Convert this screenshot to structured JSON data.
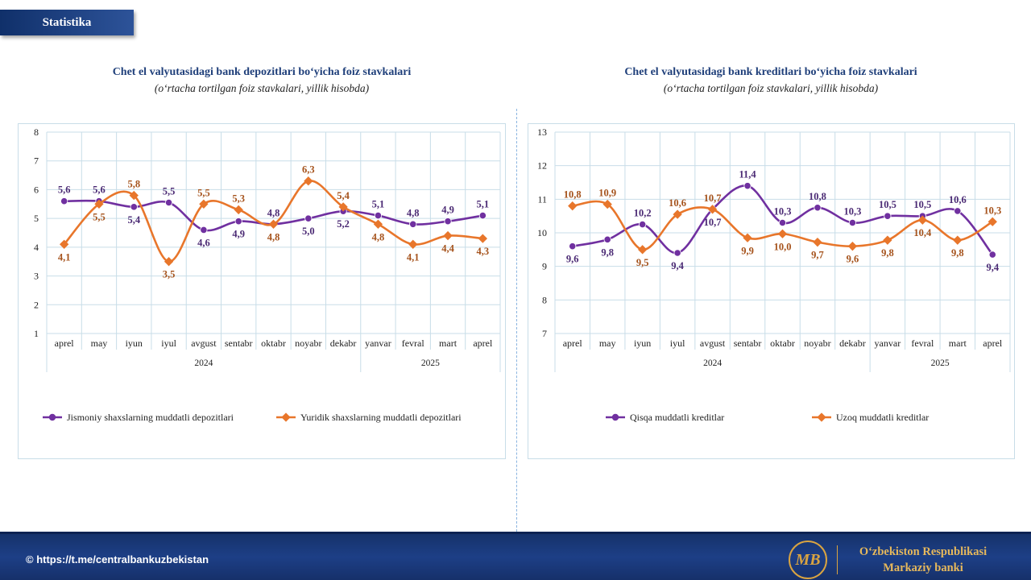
{
  "header": {
    "tag": "Statistika"
  },
  "footer": {
    "link": "© https://t.me/centralbankuzbekistan",
    "bank_line1": "O‘zbekiston Respublikasi",
    "bank_line2": "Markaziy banki",
    "logo_text": "MB"
  },
  "colors": {
    "series1": "#7030a0",
    "series2": "#e8762b",
    "label1": "#4b2a74",
    "label2": "#a5521b",
    "grid": "#c8dde8"
  },
  "chart_data": [
    {
      "type": "line",
      "title": "Chet el valyutasidagi bank depozitlari  bo‘yicha foiz stavkalari",
      "subtitle": "(o‘rtacha tortilgan foiz stavkalari, yillik hisobda)",
      "categories": [
        "aprel",
        "may",
        "iyun",
        "iyul",
        "avgust",
        "sentabr",
        "oktabr",
        "noyabr",
        "dekabr",
        "yanvar",
        "fevral",
        "mart",
        "aprel"
      ],
      "year_groups": [
        {
          "label": "2024",
          "count": 9
        },
        {
          "label": "2025",
          "count": 4
        }
      ],
      "ylim": [
        1,
        8
      ],
      "yticks": [
        "1",
        "2",
        "3",
        "4",
        "5",
        "6",
        "7",
        "8"
      ],
      "grid": true,
      "legend_position": "bottom",
      "series": [
        {
          "name": "Jismoniy shaxslarning muddatli depozitlari",
          "values": [
            5.6,
            5.6,
            5.4,
            5.55,
            4.6,
            4.9,
            4.8,
            5.0,
            5.25,
            5.1,
            4.8,
            4.9,
            5.1
          ],
          "labels": [
            "5,6",
            "5,6",
            "5,4",
            "5,5",
            "4,6",
            "4,9",
            "4,8",
            "5,0",
            "5,2",
            "5,1",
            "4,8",
            "4,9",
            "5,1"
          ],
          "label_pos": [
            "above",
            "above",
            "below",
            "above",
            "below",
            "below",
            "above",
            "below",
            "below",
            "above",
            "above",
            "above",
            "above"
          ]
        },
        {
          "name": "Yuridik shaxslarning muddatli depozitlari",
          "values": [
            4.1,
            5.5,
            5.8,
            3.5,
            5.5,
            5.3,
            4.8,
            6.3,
            5.4,
            4.8,
            4.1,
            4.4,
            4.3
          ],
          "labels": [
            "4,1",
            "5,5",
            "5,8",
            "3,5",
            "5,5",
            "5,3",
            "4,8",
            "6,3",
            "5,4",
            "4,8",
            "4,1",
            "4,4",
            "4,3"
          ],
          "label_pos": [
            "below",
            "below",
            "above",
            "below",
            "above",
            "above",
            "below",
            "above",
            "above",
            "below",
            "below",
            "below",
            "below"
          ]
        }
      ]
    },
    {
      "type": "line",
      "title": "Chet el valyutasidagi bank kreditlari bo‘yicha foiz stavkalari",
      "subtitle": "(o‘rtacha tortilgan foiz stavkalari, yillik hisobda)",
      "categories": [
        "aprel",
        "may",
        "iyun",
        "iyul",
        "avgust",
        "sentabr",
        "oktabr",
        "noyabr",
        "dekabr",
        "yanvar",
        "fevral",
        "mart",
        "aprel"
      ],
      "year_groups": [
        {
          "label": "2024",
          "count": 9
        },
        {
          "label": "2025",
          "count": 4
        }
      ],
      "ylim": [
        7,
        13
      ],
      "yticks": [
        "7",
        "8",
        "9",
        "10",
        "11",
        "12",
        "13"
      ],
      "grid": true,
      "legend_position": "bottom",
      "series": [
        {
          "name": "Qisqa muddatli kreditlar",
          "values": [
            9.6,
            9.8,
            10.25,
            9.4,
            10.7,
            11.4,
            10.3,
            10.75,
            10.3,
            10.5,
            10.5,
            10.65,
            9.35
          ],
          "labels": [
            "9,6",
            "9,8",
            "10,2",
            "9,4",
            "10,7",
            "11,4",
            "10,3",
            "10,8",
            "10,3",
            "10,5",
            "10,5",
            "10,6",
            "9,4"
          ],
          "label_pos": [
            "below",
            "below",
            "above",
            "below",
            "below",
            "above",
            "above",
            "above",
            "above",
            "above",
            "above",
            "above",
            "below"
          ]
        },
        {
          "name": "Uzoq muddatli kreditlar",
          "values": [
            10.8,
            10.85,
            9.5,
            10.55,
            10.7,
            9.85,
            9.97,
            9.72,
            9.6,
            9.78,
            10.38,
            9.78,
            10.33
          ],
          "labels": [
            "10,8",
            "10,9",
            "9,5",
            "10,6",
            "10,7",
            "9,9",
            "10,0",
            "9,7",
            "9,6",
            "9,8",
            "10,4",
            "9,8",
            "10,3"
          ],
          "label_pos": [
            "above",
            "above",
            "below",
            "above",
            "above",
            "below",
            "below",
            "below",
            "below",
            "below",
            "below",
            "below",
            "above"
          ]
        }
      ]
    }
  ]
}
